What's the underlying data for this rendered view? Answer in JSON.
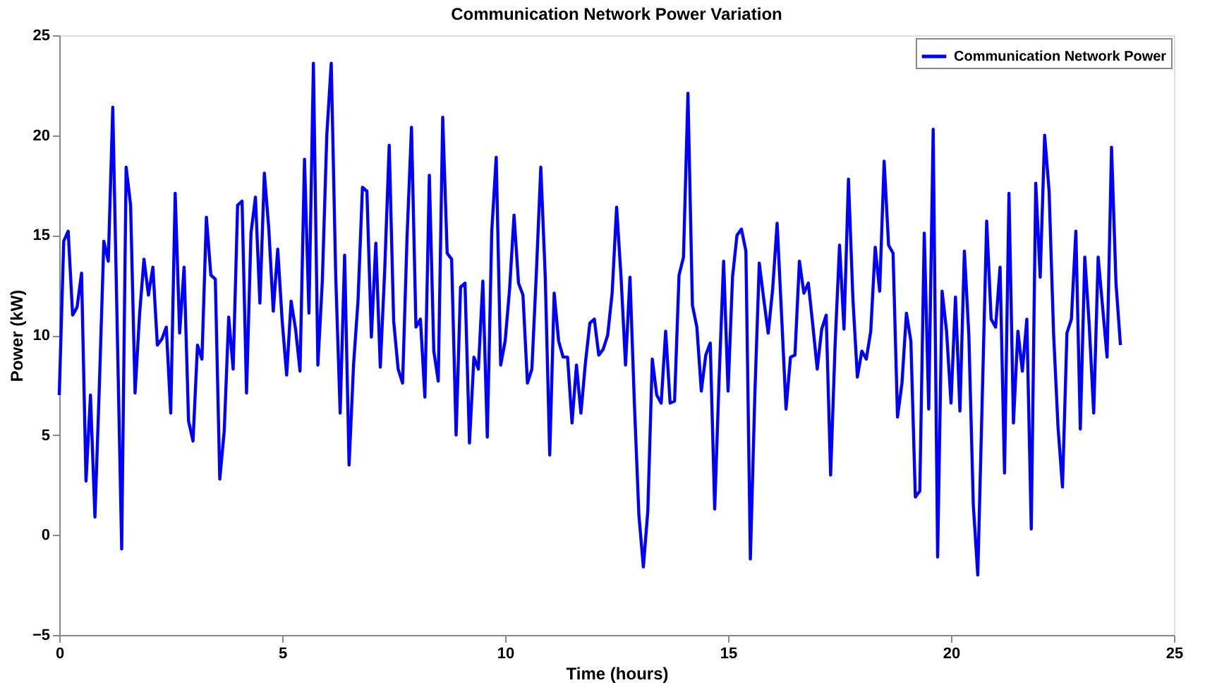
{
  "chart_data": {
    "type": "line",
    "title": "Communication Network Power Variation",
    "xlabel": "Time (hours)",
    "ylabel": "Power (kW)",
    "x": [
      0,
      0.1,
      0.2,
      0.3,
      0.4,
      0.5,
      0.6,
      0.7,
      0.8,
      0.9,
      1.0,
      1.1,
      1.2,
      1.4,
      1.5,
      1.6,
      1.7,
      1.8,
      1.9,
      2.0,
      2.1,
      2.2,
      2.3,
      2.4,
      2.5,
      2.6,
      2.7,
      2.8,
      2.9,
      3.0,
      3.1,
      3.2,
      3.3,
      3.4,
      3.5,
      3.6,
      3.7,
      3.8,
      3.9,
      4.0,
      4.1,
      4.2,
      4.3,
      4.4,
      4.5,
      4.6,
      4.7,
      4.8,
      4.9,
      5.0,
      5.1,
      5.2,
      5.3,
      5.4,
      5.5,
      5.6,
      5.7,
      5.8,
      5.9,
      6.0,
      6.1,
      6.2,
      6.3,
      6.4,
      6.5,
      6.6,
      6.7,
      6.8,
      6.9,
      7.0,
      7.1,
      7.2,
      7.3,
      7.4,
      7.5,
      7.6,
      7.7,
      7.8,
      7.9,
      8.0,
      8.1,
      8.2,
      8.3,
      8.4,
      8.5,
      8.6,
      8.7,
      8.8,
      8.9,
      9.0,
      9.1,
      9.2,
      9.3,
      9.4,
      9.5,
      9.6,
      9.7,
      9.8,
      9.9,
      10.0,
      10.1,
      10.2,
      10.3,
      10.4,
      10.5,
      10.6,
      10.7,
      10.8,
      10.9,
      11.0,
      11.1,
      11.2,
      11.3,
      11.4,
      11.5,
      11.6,
      11.7,
      11.8,
      11.9,
      12.0,
      12.1,
      12.2,
      12.3,
      12.4,
      12.5,
      12.6,
      12.7,
      12.8,
      12.9,
      13.0,
      13.1,
      13.2,
      13.3,
      13.4,
      13.5,
      13.6,
      13.7,
      13.8,
      13.9,
      14.0,
      14.1,
      14.2,
      14.3,
      14.4,
      14.5,
      14.6,
      14.7,
      14.8,
      14.9,
      15.0,
      15.1,
      15.2,
      15.3,
      15.4,
      15.5,
      15.6,
      15.7,
      15.8,
      15.9,
      16.0,
      16.1,
      16.2,
      16.3,
      16.4,
      16.5,
      16.6,
      16.7,
      16.8,
      16.9,
      17.0,
      17.1,
      17.2,
      17.3,
      17.4,
      17.5,
      17.6,
      17.7,
      17.8,
      17.9,
      18.0,
      18.1,
      18.2,
      18.3,
      18.4,
      18.5,
      18.6,
      18.7,
      18.8,
      18.9,
      19.0,
      19.1,
      19.2,
      19.3,
      19.4,
      19.5,
      19.6,
      19.7,
      19.8,
      19.9,
      20.0,
      20.1,
      20.2,
      20.3,
      20.4,
      20.5,
      20.6,
      20.7,
      20.8,
      20.9,
      21.0,
      21.1,
      21.2,
      21.3,
      21.4,
      21.5,
      21.6,
      21.7,
      21.8,
      21.9,
      22.0,
      22.1,
      22.2,
      22.3,
      22.4,
      22.5,
      22.6,
      22.7,
      22.8,
      22.9,
      23.0,
      23.1,
      23.2,
      23.3,
      23.4,
      23.5,
      23.6,
      23.7,
      23.8
    ],
    "series": [
      {
        "name": "Communication Network Power",
        "color": "#0000ff",
        "values": [
          7.0,
          14.7,
          15.2,
          11.0,
          11.4,
          13.1,
          2.7,
          7.0,
          0.9,
          7.5,
          14.7,
          13.7,
          21.4,
          -0.7,
          18.4,
          16.5,
          7.1,
          11.0,
          13.8,
          12.0,
          13.4,
          9.5,
          9.8,
          10.4,
          6.1,
          17.1,
          10.1,
          13.4,
          5.7,
          4.7,
          9.5,
          8.8,
          15.9,
          13.0,
          12.8,
          2.8,
          5.2,
          10.9,
          8.3,
          16.5,
          16.7,
          7.1,
          15.1,
          16.9,
          11.6,
          18.1,
          15.3,
          11.2,
          14.3,
          10.7,
          8.0,
          11.7,
          10.3,
          8.2,
          18.8,
          11.1,
          23.6,
          8.5,
          12.7,
          20.0,
          23.6,
          13.0,
          6.1,
          14.0,
          3.5,
          8.5,
          11.7,
          17.4,
          17.2,
          9.9,
          14.6,
          8.4,
          13.3,
          19.5,
          10.7,
          8.3,
          7.6,
          14.9,
          20.4,
          10.4,
          10.8,
          6.9,
          18.0,
          9.2,
          7.7,
          20.9,
          14.1,
          13.8,
          5.0,
          12.4,
          12.6,
          4.6,
          8.9,
          8.3,
          12.7,
          4.9,
          15.2,
          18.9,
          8.5,
          9.7,
          12.3,
          16.0,
          12.6,
          12.0,
          7.6,
          8.3,
          13.1,
          18.4,
          12.9,
          4.0,
          12.1,
          9.7,
          8.9,
          8.9,
          5.6,
          8.5,
          6.1,
          8.6,
          10.6,
          10.8,
          9.0,
          9.3,
          10.0,
          12.1,
          16.4,
          12.9,
          8.5,
          12.9,
          6.5,
          1.0,
          -1.6,
          1.2,
          8.8,
          7.0,
          6.6,
          10.2,
          6.6,
          6.7,
          13.0,
          13.9,
          22.1,
          11.5,
          10.4,
          7.2,
          9.0,
          9.6,
          1.3,
          7.9,
          13.7,
          7.2,
          12.9,
          15.0,
          15.3,
          14.2,
          -1.2,
          7.0,
          13.6,
          11.8,
          10.1,
          12.3,
          15.6,
          11.0,
          6.3,
          8.9,
          9.0,
          13.7,
          12.1,
          12.6,
          10.5,
          8.3,
          10.3,
          11.0,
          3.0,
          9.5,
          14.5,
          10.3,
          17.8,
          11.8,
          7.9,
          9.2,
          8.8,
          10.2,
          14.4,
          12.2,
          18.7,
          14.5,
          14.1,
          5.9,
          7.6,
          11.1,
          9.7,
          1.9,
          2.2,
          15.1,
          6.3,
          20.3,
          -1.1,
          12.2,
          10.2,
          6.6,
          11.9,
          6.2,
          14.2,
          10.0,
          1.5,
          -2.0,
          6.8,
          15.7,
          10.8,
          10.4,
          13.4,
          3.1,
          17.1,
          5.6,
          10.2,
          8.2,
          10.8,
          0.3,
          17.6,
          12.9,
          20.0,
          17.2,
          10.1,
          5.4,
          2.4,
          10.1,
          10.8,
          15.2,
          5.3,
          13.9,
          10.5,
          6.1,
          13.9,
          11.4,
          8.9,
          19.4,
          12.6,
          9.5
        ]
      }
    ],
    "xlim": [
      0,
      25
    ],
    "ylim": [
      -5,
      25
    ],
    "xticks": [
      0,
      5,
      10,
      15,
      20,
      25
    ],
    "yticks": [
      -5,
      0,
      5,
      10,
      15,
      20,
      25
    ],
    "grid": false,
    "legend": "top right",
    "line_style": "solid",
    "marker": "none"
  }
}
